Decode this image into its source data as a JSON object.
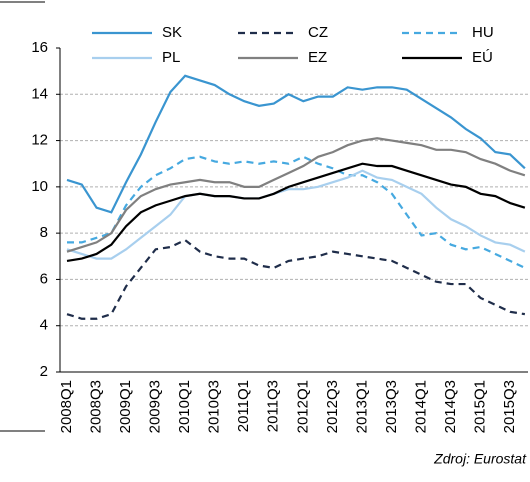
{
  "chart_data": {
    "type": "line",
    "source": "Zdroj: Eurostat",
    "categories": [
      "2008Q1",
      null,
      "2008Q3",
      null,
      "2009Q1",
      null,
      "2009Q3",
      null,
      "2010Q1",
      null,
      "2010Q3",
      null,
      "2011Q1",
      null,
      "2011Q3",
      null,
      "2012Q1",
      null,
      "2012Q3",
      null,
      "2013Q1",
      null,
      "2013Q3",
      null,
      "2014Q1",
      null,
      "2014Q3",
      null,
      "2015Q1",
      null,
      "2015Q3",
      null
    ],
    "ylim": [
      2,
      16
    ],
    "yticks": [
      2,
      4,
      6,
      8,
      10,
      12,
      14,
      16
    ],
    "grid": true,
    "series": [
      {
        "name": "SK",
        "color": "#3a95d0",
        "style": "solid",
        "values": [
          10.3,
          10.1,
          9.1,
          8.9,
          10.2,
          11.4,
          12.8,
          14.1,
          14.8,
          14.6,
          14.4,
          14.0,
          13.7,
          13.5,
          13.6,
          14.0,
          13.7,
          13.9,
          13.9,
          14.3,
          14.2,
          14.3,
          14.3,
          14.2,
          13.8,
          13.4,
          13.0,
          12.5,
          12.1,
          11.5,
          11.4,
          10.8
        ]
      },
      {
        "name": "CZ",
        "color": "#1f2d4a",
        "style": "dashed",
        "values": [
          4.5,
          4.3,
          4.3,
          4.5,
          5.7,
          6.5,
          7.3,
          7.4,
          7.7,
          7.2,
          7.0,
          6.9,
          6.9,
          6.6,
          6.5,
          6.8,
          6.9,
          7.0,
          7.2,
          7.1,
          7.0,
          6.9,
          6.8,
          6.5,
          6.2,
          5.9,
          5.8,
          5.8,
          5.2,
          4.9,
          4.6,
          4.5
        ]
      },
      {
        "name": "HU",
        "color": "#46a9e0",
        "style": "dashed",
        "values": [
          7.6,
          7.6,
          7.8,
          8.0,
          9.2,
          10.0,
          10.5,
          10.8,
          11.2,
          11.3,
          11.1,
          11.0,
          11.1,
          11.0,
          11.1,
          11.0,
          11.3,
          11.0,
          10.8,
          10.5,
          10.5,
          10.2,
          9.7,
          8.8,
          7.9,
          8.0,
          7.5,
          7.3,
          7.4,
          7.1,
          6.8,
          6.5
        ]
      },
      {
        "name": "PL",
        "color": "#a8cfee",
        "style": "solid",
        "values": [
          7.3,
          7.1,
          6.9,
          6.9,
          7.3,
          7.8,
          8.3,
          8.8,
          9.6,
          9.7,
          9.6,
          9.6,
          9.5,
          9.5,
          9.7,
          9.9,
          9.9,
          10.0,
          10.2,
          10.4,
          10.7,
          10.4,
          10.3,
          10.0,
          9.7,
          9.1,
          8.6,
          8.3,
          7.9,
          7.6,
          7.5,
          7.2
        ]
      },
      {
        "name": "EZ",
        "color": "#808080",
        "style": "solid",
        "values": [
          7.2,
          7.4,
          7.6,
          8.0,
          9.0,
          9.6,
          9.9,
          10.1,
          10.2,
          10.3,
          10.2,
          10.2,
          10.0,
          10.0,
          10.3,
          10.6,
          10.9,
          11.3,
          11.5,
          11.8,
          12.0,
          12.1,
          12.0,
          11.9,
          11.8,
          11.6,
          11.6,
          11.5,
          11.2,
          11.0,
          10.7,
          10.5
        ]
      },
      {
        "name": "EÚ",
        "color": "#000000",
        "style": "solid",
        "values": [
          6.8,
          6.9,
          7.1,
          7.5,
          8.3,
          8.9,
          9.2,
          9.4,
          9.6,
          9.7,
          9.6,
          9.6,
          9.5,
          9.5,
          9.7,
          10.0,
          10.2,
          10.4,
          10.6,
          10.8,
          11.0,
          10.9,
          10.9,
          10.7,
          10.5,
          10.3,
          10.1,
          10.0,
          9.7,
          9.6,
          9.3,
          9.1
        ]
      }
    ]
  }
}
